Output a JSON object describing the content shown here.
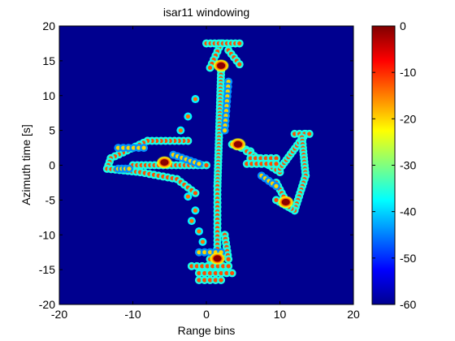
{
  "chart_data": {
    "type": "heatmap",
    "title": "isar11 windowing",
    "xlabel": "Range bins",
    "ylabel": "Azimuth time [s]",
    "xlim": [
      -20,
      20
    ],
    "ylim": [
      -20,
      20
    ],
    "xticks": [
      -20,
      -10,
      0,
      10,
      20
    ],
    "yticks": [
      -20,
      -15,
      -10,
      -5,
      0,
      5,
      10,
      15,
      20
    ],
    "colorbar": {
      "label": "",
      "range": [
        -60,
        0
      ],
      "ticks": [
        0,
        -10,
        -20,
        -30,
        -40,
        -50,
        -60
      ],
      "colormap": "jet"
    },
    "background_value": -60,
    "grid": false,
    "features": [
      {
        "kind": "chain",
        "from": [
          2,
          17.5
        ],
        "to": [
          0.5,
          14
        ],
        "step": 0.6,
        "value": -30
      },
      {
        "kind": "chain",
        "from": [
          0,
          17.5
        ],
        "to": [
          4.5,
          17.5
        ],
        "step": 0.6,
        "value": -30
      },
      {
        "kind": "chain",
        "from": [
          3,
          16.5
        ],
        "to": [
          4.5,
          14.5
        ],
        "step": 0.6,
        "value": -30
      },
      {
        "kind": "chain",
        "from": [
          2,
          13.5
        ],
        "to": [
          1.5,
          -3
        ],
        "step": 0.5,
        "value": -30
      },
      {
        "kind": "chain",
        "from": [
          3,
          12
        ],
        "to": [
          2.5,
          5
        ],
        "step": 0.7,
        "value": -38
      },
      {
        "kind": "chain",
        "from": [
          3.5,
          3
        ],
        "to": [
          6,
          2
        ],
        "step": 0.6,
        "value": -30
      },
      {
        "kind": "chain",
        "from": [
          5.5,
          2
        ],
        "to": [
          10,
          -1
        ],
        "step": 0.6,
        "value": -30
      },
      {
        "kind": "chain",
        "from": [
          6,
          1
        ],
        "to": [
          9.5,
          1
        ],
        "step": 0.7,
        "value": -30
      },
      {
        "kind": "chain",
        "from": [
          5.5,
          0.2
        ],
        "to": [
          9.5,
          0.2
        ],
        "step": 0.7,
        "value": -30
      },
      {
        "kind": "chain",
        "from": [
          10,
          -0.5
        ],
        "to": [
          13.5,
          4.5
        ],
        "step": 0.5,
        "value": -30
      },
      {
        "kind": "chain",
        "from": [
          12,
          4.5
        ],
        "to": [
          14,
          4.5
        ],
        "step": 0.6,
        "value": -30
      },
      {
        "kind": "chain",
        "from": [
          13,
          4
        ],
        "to": [
          13.5,
          -1.5
        ],
        "step": 0.5,
        "value": -30
      },
      {
        "kind": "chain",
        "from": [
          13.5,
          -1.5
        ],
        "to": [
          12,
          -6.5
        ],
        "step": 0.5,
        "value": -30
      },
      {
        "kind": "chain",
        "from": [
          12,
          -6.5
        ],
        "to": [
          9.5,
          -5
        ],
        "step": 0.5,
        "value": -30
      },
      {
        "kind": "chain",
        "from": [
          9.5,
          -2.5
        ],
        "to": [
          10.5,
          -4.5
        ],
        "step": 0.5,
        "value": -30
      },
      {
        "kind": "chain",
        "from": [
          7.5,
          -1.5
        ],
        "to": [
          9.5,
          -3
        ],
        "step": 0.6,
        "value": -38
      },
      {
        "kind": "chain",
        "from": [
          1.5,
          -3
        ],
        "to": [
          1.5,
          -12
        ],
        "step": 0.6,
        "value": -30
      },
      {
        "kind": "chain",
        "from": [
          1.5,
          -12
        ],
        "to": [
          0.5,
          -13.5
        ],
        "step": 0.6,
        "value": -30
      },
      {
        "kind": "chain",
        "from": [
          2.5,
          -10
        ],
        "to": [
          3,
          -13.5
        ],
        "step": 0.6,
        "value": -30
      },
      {
        "kind": "chain",
        "from": [
          -2,
          -14.5
        ],
        "to": [
          3,
          -14.5
        ],
        "step": 0.7,
        "value": -30
      },
      {
        "kind": "chain",
        "from": [
          -1,
          -15.5
        ],
        "to": [
          3.5,
          -15.5
        ],
        "step": 0.7,
        "value": -30
      },
      {
        "kind": "chain",
        "from": [
          -1,
          -16.5
        ],
        "to": [
          2,
          -16.5
        ],
        "step": 0.7,
        "value": -30
      },
      {
        "kind": "chain",
        "from": [
          -1,
          -12.5
        ],
        "to": [
          2,
          -12.5
        ],
        "step": 0.7,
        "value": -38
      },
      {
        "kind": "chain",
        "from": [
          -2.5,
          3.5
        ],
        "to": [
          -8,
          3.5
        ],
        "step": 0.6,
        "value": -30
      },
      {
        "kind": "chain",
        "from": [
          -8,
          3.5
        ],
        "to": [
          -13,
          1
        ],
        "step": 0.6,
        "value": -30
      },
      {
        "kind": "chain",
        "from": [
          -13,
          1
        ],
        "to": [
          -13.5,
          -0.5
        ],
        "step": 0.5,
        "value": -30
      },
      {
        "kind": "chain",
        "from": [
          -13.5,
          -0.5
        ],
        "to": [
          -9,
          -1
        ],
        "step": 0.6,
        "value": -30
      },
      {
        "kind": "chain",
        "from": [
          -9,
          -1
        ],
        "to": [
          -4,
          -2
        ],
        "step": 0.6,
        "value": -30
      },
      {
        "kind": "chain",
        "from": [
          -4,
          -2
        ],
        "to": [
          -1.5,
          -4
        ],
        "step": 0.6,
        "value": -30
      },
      {
        "kind": "chain",
        "from": [
          -12,
          2.5
        ],
        "to": [
          -8.5,
          2.5
        ],
        "step": 0.7,
        "value": -38
      },
      {
        "kind": "chain",
        "from": [
          -10,
          0
        ],
        "to": [
          0,
          0
        ],
        "step": 0.6,
        "value": -30
      },
      {
        "kind": "chain",
        "from": [
          -4.5,
          1.5
        ],
        "to": [
          -1,
          0.2
        ],
        "step": 0.6,
        "value": -38
      },
      {
        "kind": "chain",
        "from": [
          -12,
          -0.5
        ],
        "to": [
          -10.5,
          -0.5
        ],
        "step": 0.6,
        "value": -38
      },
      {
        "kind": "dot",
        "at": [
          -1.5,
          9.5
        ],
        "value": -32
      },
      {
        "kind": "dot",
        "at": [
          -2.5,
          7
        ],
        "value": -32
      },
      {
        "kind": "dot",
        "at": [
          -3.5,
          5
        ],
        "value": -32
      },
      {
        "kind": "dot",
        "at": [
          -1.5,
          -6.5
        ],
        "value": -32
      },
      {
        "kind": "dot",
        "at": [
          -2,
          -8
        ],
        "value": -32
      },
      {
        "kind": "dot",
        "at": [
          -1,
          -9.5
        ],
        "value": -32
      },
      {
        "kind": "dot",
        "at": [
          -0.5,
          -11
        ],
        "value": -32
      },
      {
        "kind": "dot",
        "at": [
          -2.5,
          -4.5
        ],
        "value": -32
      }
    ],
    "peaks": [
      {
        "at": [
          2,
          14.3
        ],
        "value": 0
      },
      {
        "at": [
          4.3,
          3
        ],
        "value": 0
      },
      {
        "at": [
          -5.7,
          0.4
        ],
        "value": 0
      },
      {
        "at": [
          10.8,
          -5.3
        ],
        "value": 0
      },
      {
        "at": [
          1.5,
          -13.4
        ],
        "value": 0
      }
    ]
  }
}
